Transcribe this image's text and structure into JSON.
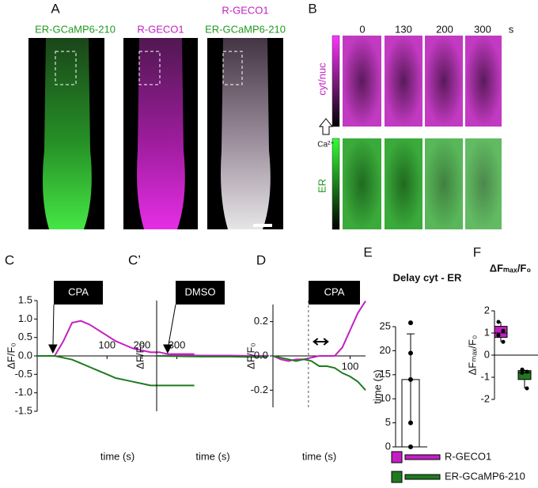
{
  "panel_a": {
    "label": "A",
    "images": [
      {
        "title": [
          "ER-GCaMP6-210"
        ]
      },
      {
        "title": [
          "R-GECO1"
        ]
      },
      {
        "title": [
          "R-GECO1",
          "ER-GCaMP6-210"
        ]
      }
    ]
  },
  "panel_b": {
    "label": "B",
    "times": [
      0,
      130,
      200,
      300
    ],
    "unit": "s",
    "rows": [
      {
        "label": "cyt/nuc"
      },
      {
        "label": "ER"
      }
    ],
    "ion": "Ca²⁺"
  },
  "chart_data": [
    {
      "type": "line",
      "panel": "C",
      "annotation": "CPA",
      "arrow_x": -55,
      "ylabel": "ΔF/F₀",
      "xlabel": "time (s)",
      "xlim": [
        -100,
        360
      ],
      "xticks": [
        100,
        200,
        300
      ],
      "ylim": [
        -1.5,
        1.5
      ],
      "yticks": [
        -1.5,
        {
          "value": -1,
          "label": "-1.0"
        },
        -0.5,
        {
          "value": 0,
          "label": "0.0"
        },
        0.5,
        {
          "value": 1,
          "label": "1.0"
        },
        1.5
      ],
      "x": [
        -100,
        -75,
        -50,
        -25,
        0,
        25,
        50,
        75,
        100,
        125,
        150,
        175,
        200,
        225,
        250,
        275,
        300,
        325,
        350
      ],
      "series": [
        {
          "name": "R-GECO1",
          "color": "#c21fc2",
          "values": [
            0,
            0,
            0,
            0.4,
            0.9,
            0.95,
            0.85,
            0.7,
            0.55,
            0.4,
            0.3,
            0.2,
            0.15,
            0.1,
            0.1,
            0.05,
            0.05,
            0.05,
            0.05
          ]
        },
        {
          "name": "ER-GCaMP6-210",
          "color": "#1f7a1f",
          "values": [
            0,
            0,
            0,
            -0.05,
            -0.1,
            -0.2,
            -0.3,
            -0.4,
            -0.5,
            -0.6,
            -0.65,
            -0.7,
            -0.75,
            -0.8,
            -0.8,
            -0.8,
            -0.8,
            -0.8,
            -0.8
          ]
        }
      ]
    },
    {
      "type": "line",
      "panel": "C’",
      "annotation": "DMSO",
      "arrow_x": -55,
      "ylabel": "ΔF/F₀",
      "xlabel": "time (s)",
      "xlim": [
        -100,
        360
      ],
      "ylim": [
        -1.5,
        1.5
      ],
      "x": [
        -100,
        0,
        100,
        200,
        300,
        350
      ],
      "series": [
        {
          "name": "R-GECO1",
          "color": "#c21fc2",
          "values": [
            0,
            0.02,
            0.01,
            0.01,
            0,
            0
          ]
        },
        {
          "name": "ER-GCaMP6-210",
          "color": "#1f7a1f",
          "values": [
            0,
            -0.01,
            -0.02,
            -0.02,
            -0.03,
            -0.03
          ]
        }
      ]
    },
    {
      "type": "line",
      "panel": "D",
      "annotation": "CPA",
      "marker_x": 46,
      "delay_arrow": [
        53,
        71
      ],
      "ylabel": "ΔF/F₀",
      "xlabel": "time (s)",
      "xlim": [
        0,
        120
      ],
      "xticks": [
        100
      ],
      "ylim": [
        -0.3,
        0.3
      ],
      "yticks": [
        -0.2,
        {
          "value": 0,
          "label": "0.0"
        },
        0.2
      ],
      "x": [
        0,
        10,
        20,
        30,
        40,
        50,
        60,
        70,
        80,
        90,
        100,
        110,
        120
      ],
      "series": [
        {
          "name": "R-GECO1",
          "color": "#c21fc2",
          "values": [
            0,
            -0.02,
            -0.03,
            -0.02,
            -0.02,
            -0.01,
            0,
            0,
            0,
            0.05,
            0.15,
            0.25,
            0.32
          ]
        },
        {
          "name": "ER-GCaMP6-210",
          "color": "#1f7a1f",
          "values": [
            0,
            -0.01,
            -0.02,
            -0.03,
            -0.02,
            -0.03,
            -0.06,
            -0.06,
            -0.07,
            -0.1,
            -0.12,
            -0.15,
            -0.2
          ]
        }
      ]
    },
    {
      "type": "bar",
      "panel": "E",
      "title": "Delay  cyt - ER",
      "ylabel": "time (s)",
      "ylim": [
        0,
        25
      ],
      "yticks": [
        0,
        5,
        10,
        15,
        20,
        25
      ],
      "values": [
        14
      ],
      "errors": [
        9.5
      ],
      "color": "#ffffff",
      "points": [
        25.8,
        19.5,
        14,
        5,
        0
      ]
    },
    {
      "type": "box",
      "panel": "F",
      "title": "ΔFₘₐₓ/F₀",
      "ylabel": "ΔFₘₐₓ/F₀",
      "ylim": [
        -2,
        2
      ],
      "yticks": [
        -2,
        -1,
        0,
        1,
        2
      ],
      "series": [
        {
          "name": "R-GECO1",
          "color": "#c21fc2",
          "min": 0.6,
          "q1": 0.8,
          "median": 1,
          "q3": 1.3,
          "max": 1.5,
          "points": [
            1.5,
            1.1,
            0.9,
            0.6
          ]
        },
        {
          "name": "ER-GCaMP6-210",
          "color": "#1f7a1f",
          "min": -1.5,
          "q1": -1.1,
          "median": -0.8,
          "q3": -0.7,
          "max": -0.65,
          "points": [
            -0.65,
            -0.75,
            -0.8,
            -1.5
          ]
        }
      ]
    }
  ]
}
